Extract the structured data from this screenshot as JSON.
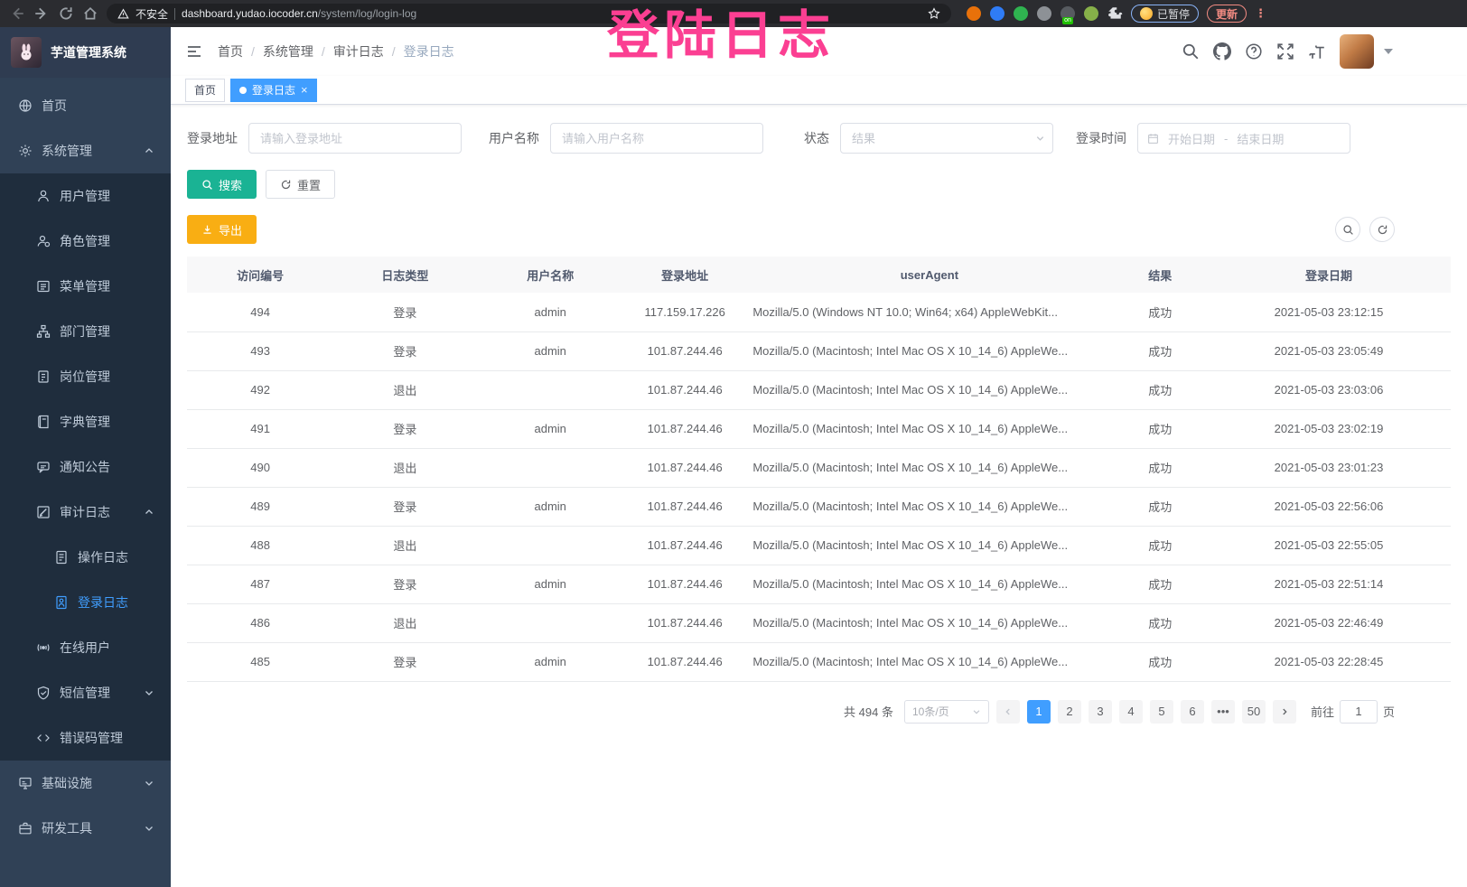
{
  "browser": {
    "security_label": "不安全",
    "url_host": "dashboard.yudao.iocoder.cn",
    "url_path": "/system/log/login-log",
    "paused_badge_label": "已暂停",
    "update_button_label": "更新",
    "extensions": [
      {
        "name": "extension-orange-icon",
        "color": "#e8710a"
      },
      {
        "name": "extension-blue-gem-icon",
        "color": "#2f7cf6"
      },
      {
        "name": "extension-green-circle-icon",
        "color": "#2fb350"
      },
      {
        "name": "extension-gray-grid-icon",
        "color": "#8d9196"
      },
      {
        "name": "extension-list-on-icon",
        "color": "#575b60",
        "badge": "on"
      },
      {
        "name": "extension-green-leaf-icon",
        "color": "#86b049"
      },
      {
        "name": "puzzle-extensions-icon",
        "color": "#dfe1e5"
      }
    ]
  },
  "overlay": {
    "text": "登陆日志",
    "color": "#fb3f92"
  },
  "sidebar": {
    "app_title": "芋道管理系统",
    "menu": [
      {
        "key": "home",
        "label": "首页",
        "icon": "dashboard-icon",
        "level": 0
      },
      {
        "key": "system",
        "label": "系统管理",
        "icon": "gear-icon",
        "level": 0,
        "arrow": "up"
      },
      {
        "key": "user",
        "label": "用户管理",
        "icon": "user-icon",
        "level": 1
      },
      {
        "key": "role",
        "label": "角色管理",
        "icon": "role-icon",
        "level": 1
      },
      {
        "key": "menu",
        "label": "菜单管理",
        "icon": "menu-list-icon",
        "level": 1
      },
      {
        "key": "dept",
        "label": "部门管理",
        "icon": "tree-icon",
        "level": 1
      },
      {
        "key": "post",
        "label": "岗位管理",
        "icon": "post-icon",
        "level": 1
      },
      {
        "key": "dict",
        "label": "字典管理",
        "icon": "dict-icon",
        "level": 1
      },
      {
        "key": "notice",
        "label": "通知公告",
        "icon": "message-icon",
        "level": 1
      },
      {
        "key": "audit-log",
        "label": "审计日志",
        "icon": "log-icon",
        "level": 1,
        "arrow": "up"
      },
      {
        "key": "operate-log",
        "label": "操作日志",
        "icon": "form-icon",
        "level": 2
      },
      {
        "key": "login-log",
        "label": "登录日志",
        "icon": "login-log-icon",
        "level": 2,
        "active": true
      },
      {
        "key": "online-user",
        "label": "在线用户",
        "icon": "online-icon",
        "level": 1
      },
      {
        "key": "sms",
        "label": "短信管理",
        "icon": "sms-icon",
        "level": 1,
        "arrow": "down"
      },
      {
        "key": "error-code",
        "label": "错误码管理",
        "icon": "code-icon",
        "level": 1
      },
      {
        "key": "infra",
        "label": "基础设施",
        "icon": "infra-icon",
        "level": 0,
        "arrow": "down"
      },
      {
        "key": "dev-tool",
        "label": "研发工具",
        "icon": "tool-icon",
        "level": 0,
        "arrow": "down"
      }
    ]
  },
  "navbar": {
    "breadcrumb": [
      "首页",
      "系统管理",
      "审计日志",
      "登录日志"
    ]
  },
  "tags": [
    {
      "key": "home",
      "label": "首页",
      "active": false,
      "closable": false
    },
    {
      "key": "login-log",
      "label": "登录日志",
      "active": true,
      "closable": true
    }
  ],
  "filters": {
    "login_address_label": "登录地址",
    "login_address_placeholder": "请输入登录地址",
    "username_label": "用户名称",
    "username_placeholder": "请输入用户名称",
    "status_label": "状态",
    "status_placeholder": "结果",
    "login_time_label": "登录时间",
    "date_start_placeholder": "开始日期",
    "date_separator": "-",
    "date_end_placeholder": "结束日期",
    "search_button_label": "搜索",
    "reset_button_label": "重置"
  },
  "toolbar": {
    "export_button_label": "导出"
  },
  "table": {
    "columns": [
      "访问编号",
      "日志类型",
      "用户名称",
      "登录地址",
      "userAgent",
      "结果",
      "登录日期"
    ],
    "rows": [
      [
        "494",
        "登录",
        "admin",
        "117.159.17.226",
        "Mozilla/5.0 (Windows NT 10.0; Win64; x64) AppleWebKit...",
        "成功",
        "2021-05-03 23:12:15"
      ],
      [
        "493",
        "登录",
        "admin",
        "101.87.244.46",
        "Mozilla/5.0 (Macintosh; Intel Mac OS X 10_14_6) AppleWe...",
        "成功",
        "2021-05-03 23:05:49"
      ],
      [
        "492",
        "退出",
        "",
        "101.87.244.46",
        "Mozilla/5.0 (Macintosh; Intel Mac OS X 10_14_6) AppleWe...",
        "成功",
        "2021-05-03 23:03:06"
      ],
      [
        "491",
        "登录",
        "admin",
        "101.87.244.46",
        "Mozilla/5.0 (Macintosh; Intel Mac OS X 10_14_6) AppleWe...",
        "成功",
        "2021-05-03 23:02:19"
      ],
      [
        "490",
        "退出",
        "",
        "101.87.244.46",
        "Mozilla/5.0 (Macintosh; Intel Mac OS X 10_14_6) AppleWe...",
        "成功",
        "2021-05-03 23:01:23"
      ],
      [
        "489",
        "登录",
        "admin",
        "101.87.244.46",
        "Mozilla/5.0 (Macintosh; Intel Mac OS X 10_14_6) AppleWe...",
        "成功",
        "2021-05-03 22:56:06"
      ],
      [
        "488",
        "退出",
        "",
        "101.87.244.46",
        "Mozilla/5.0 (Macintosh; Intel Mac OS X 10_14_6) AppleWe...",
        "成功",
        "2021-05-03 22:55:05"
      ],
      [
        "487",
        "登录",
        "admin",
        "101.87.244.46",
        "Mozilla/5.0 (Macintosh; Intel Mac OS X 10_14_6) AppleWe...",
        "成功",
        "2021-05-03 22:51:14"
      ],
      [
        "486",
        "退出",
        "",
        "101.87.244.46",
        "Mozilla/5.0 (Macintosh; Intel Mac OS X 10_14_6) AppleWe...",
        "成功",
        "2021-05-03 22:46:49"
      ],
      [
        "485",
        "登录",
        "admin",
        "101.87.244.46",
        "Mozilla/5.0 (Macintosh; Intel Mac OS X 10_14_6) AppleWe...",
        "成功",
        "2021-05-03 22:28:45"
      ]
    ]
  },
  "pagination": {
    "total_text": "共 494 条",
    "page_size": "10条/页",
    "pages": [
      "1",
      "2",
      "3",
      "4",
      "5",
      "6",
      "•••",
      "50"
    ],
    "active_page": "1",
    "goto_label": "前往",
    "goto_value": "1",
    "goto_suffix": "页"
  },
  "colors": {
    "primary": "#409eff",
    "sidebar_bg": "#304156",
    "submenu_bg": "#1f2d3d",
    "search_button": "#1ab394",
    "export_button": "#f9ae13",
    "overlay_pink": "#fb3f92"
  }
}
